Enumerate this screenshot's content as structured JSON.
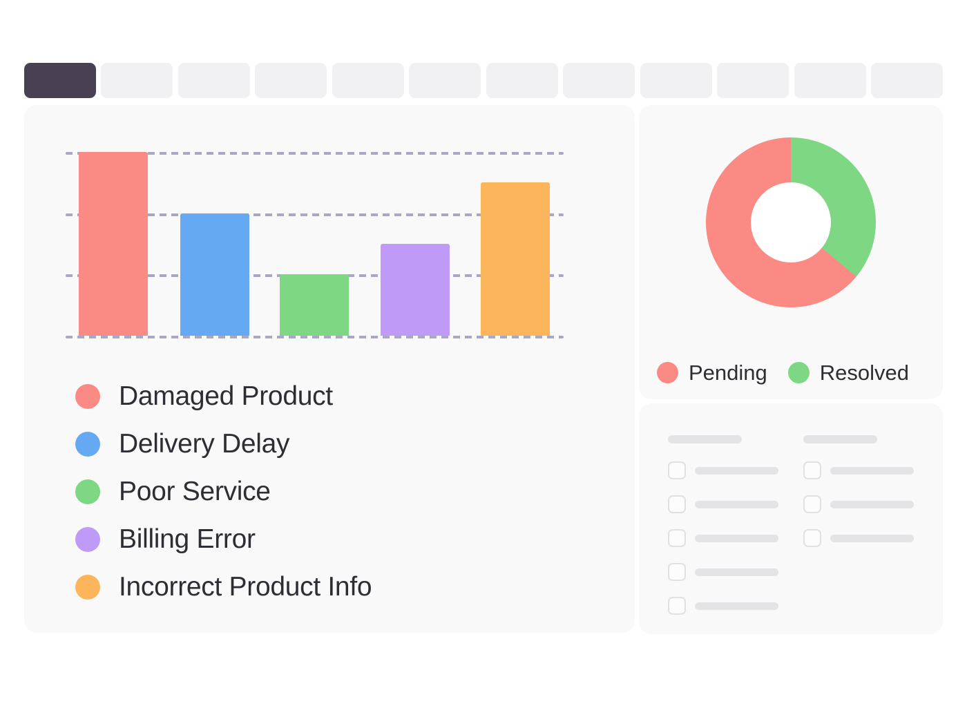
{
  "tab_bar": {
    "count": 12,
    "active_index": 0,
    "active_color": "#494053",
    "inactive_color": "#f1f1f3"
  },
  "chart_data": [
    {
      "type": "bar",
      "title": "",
      "categories": [
        "Damaged Product",
        "Delivery Delay",
        "Poor Service",
        "Billing Error",
        "Incorrect Product Info"
      ],
      "values": [
        60,
        40,
        20,
        30,
        50
      ],
      "colors": [
        "#fb8a84",
        "#66a9f3",
        "#7dd783",
        "#bf9af7",
        "#fdb55c"
      ],
      "ylim": [
        0,
        60
      ],
      "gridlines": [
        0,
        20,
        40,
        60
      ],
      "grid_style": "dashed",
      "grid_color": "#a9a7c6",
      "legend_position": "bottom-left",
      "axis_labels_visible": false
    },
    {
      "type": "donut",
      "title": "",
      "segments": [
        {
          "label": "Pending",
          "value": 64,
          "color": "#fb8a84"
        },
        {
          "label": "Resolved",
          "value": 36,
          "color": "#7dd783"
        }
      ],
      "unit": "%",
      "start_angle": "top",
      "direction": "clockwise",
      "first_segment_drawn_from_top": "Resolved",
      "inner_radius_ratio": 0.47,
      "legend_position": "bottom"
    }
  ],
  "skeleton_panel": {
    "columns": [
      {
        "header_bar": true,
        "rows": 5
      },
      {
        "header_bar": true,
        "rows": 3
      }
    ]
  }
}
